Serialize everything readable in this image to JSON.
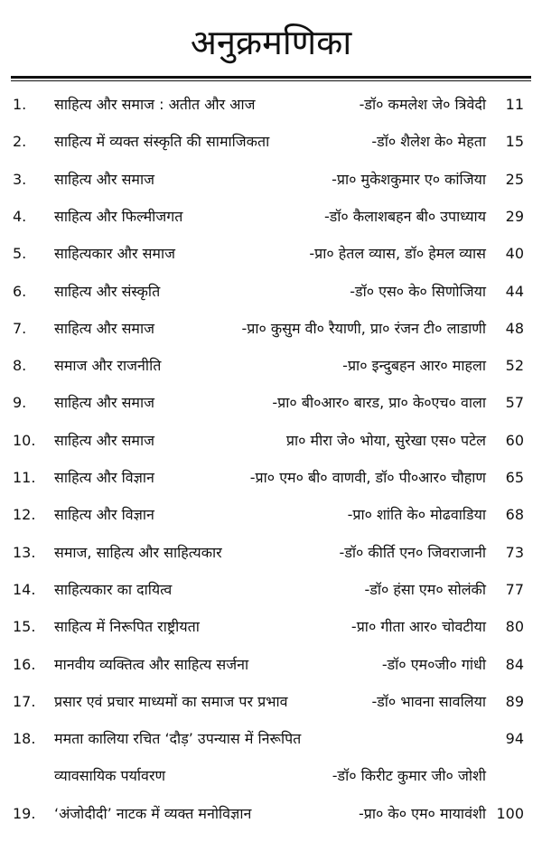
{
  "title": "अनुक्रमणिका",
  "entries": [
    {
      "num": "1.",
      "title": "साहित्य और समाज : अतीत और आज",
      "author": "-डॉ० कमलेश जे० त्रिवेदी",
      "page": "11"
    },
    {
      "num": "2.",
      "title": "साहित्य में व्यक्त संस्कृति की सामाजिकता",
      "author": "-डॉ० शैलेश के० मेहता",
      "page": "15"
    },
    {
      "num": "3.",
      "title": "साहित्य और समाज",
      "author": "-प्रा० मुकेशकुमार ए० कांजिया",
      "page": "25"
    },
    {
      "num": "4.",
      "title": "साहित्य और फिल्मीजगत",
      "author": "-डॉ० कैलाशबहन बी० उपाध्याय",
      "page": "29"
    },
    {
      "num": "5.",
      "title": "साहित्यकार और समाज",
      "author": "-प्रा० हेतल व्यास, डॉ० हेमल व्यास",
      "page": "40"
    },
    {
      "num": "6.",
      "title": "साहित्य और संस्कृति",
      "author": "-डॉ० एस० के० सिणोजिया",
      "page": "44"
    },
    {
      "num": "7.",
      "title": "साहित्य और समाज",
      "author": "-प्रा० कुसुम वी० रैयाणी, प्रा० रंजन टी० लाडाणी",
      "page": "48"
    },
    {
      "num": "8.",
      "title": "समाज और राजनीति",
      "author": "-प्रा० इन्दुबहन आर० माहला",
      "page": "52"
    },
    {
      "num": "9.",
      "title": "साहित्य और समाज",
      "author": "-प्रा० बी०आर० बारड, प्रा० के०एच० वाला",
      "page": "57"
    },
    {
      "num": "10.",
      "title": "साहित्य और समाज",
      "author": "प्रा० मीरा जे० भोया, सुरेखा एस० पटेल",
      "page": "60"
    },
    {
      "num": "11.",
      "title": "साहित्य और विज्ञान",
      "author": "-प्रा० एम० बी० वाणवी, डॉ० पी०आर० चौहाण",
      "page": "65"
    },
    {
      "num": "12.",
      "title": "साहित्य और विज्ञान",
      "author": "-प्रा० शांति के० मोढवाडिया",
      "page": "68"
    },
    {
      "num": "13.",
      "title": "समाज, साहित्य और साहित्यकार",
      "author": "-डॉ० कीर्ति एन० जिवराजानी",
      "page": "73"
    },
    {
      "num": "14.",
      "title": "साहित्यकार का दायित्व",
      "author": "-डॉ० हंसा एम० सोलंकी",
      "page": "77"
    },
    {
      "num": "15.",
      "title": "साहित्य में निरूपित राष्ट्रीयता",
      "author": "-प्रा० गीता आर० चोवटीया",
      "page": "80"
    },
    {
      "num": "16.",
      "title": "मानवीय व्यक्तित्व और साहित्य सर्जना",
      "author": "-डॉ० एम०जी० गांधी",
      "page": "84"
    },
    {
      "num": "17.",
      "title": "प्रसार एवं प्रचार माध्यमों का समाज पर प्रभाव",
      "author": "-डॉ० भावना सावलिया",
      "page": "89"
    },
    {
      "num": "18.",
      "title": "ममता कालिया रचित ‘दौड़’ उपन्यास में निरूपित",
      "title_line2": "व्यावसायिक पर्यावरण",
      "author": "-डॉ० किरीट कुमार जी० जोशी",
      "page": "94"
    },
    {
      "num": "19.",
      "title": "‘अंजोदीदी’ नाटक में व्यक्त मनोविज्ञान",
      "author": "-प्रा० के० एम० मायावंशी",
      "page": "100"
    }
  ]
}
